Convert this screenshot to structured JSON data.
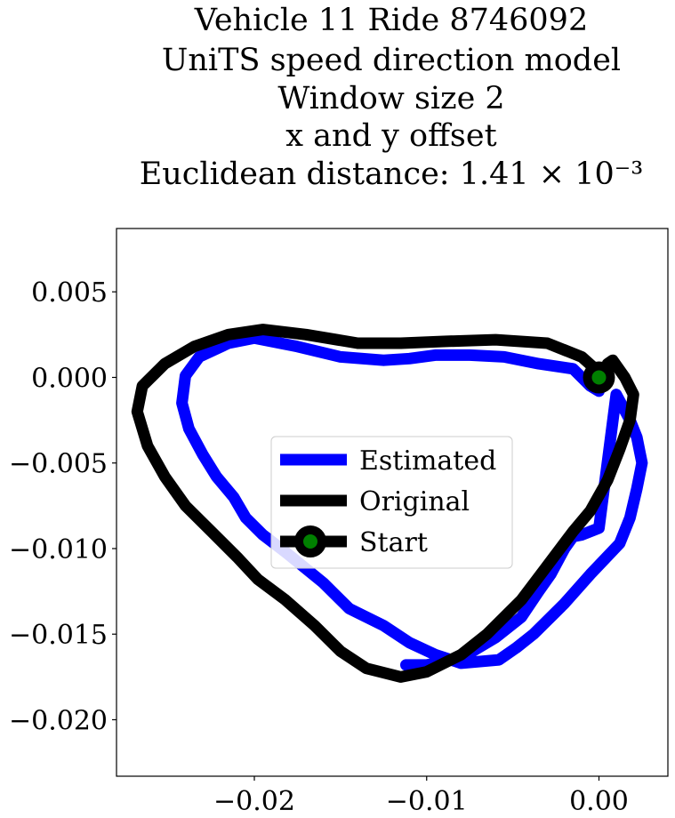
{
  "chart_data": {
    "type": "line",
    "title_lines": [
      "Vehicle 11 Ride 8746092",
      "UniTS speed direction model",
      "Window size 2",
      "x and y offset",
      "Euclidean distance: 1.41 × 10⁻³"
    ],
    "xlabel": "",
    "ylabel": "",
    "xlim": [
      -0.028,
      0.004
    ],
    "ylim": [
      -0.0233,
      0.0087
    ],
    "xticks": [
      -0.02,
      -0.01,
      0.0
    ],
    "xtick_labels": [
      "−0.02",
      "−0.01",
      "0.00"
    ],
    "yticks": [
      0.005,
      0.0,
      -0.005,
      -0.01,
      -0.015,
      -0.02
    ],
    "ytick_labels": [
      "0.005",
      "0.000",
      "−0.005",
      "−0.010",
      "−0.015",
      "−0.020"
    ],
    "grid": false,
    "legend_position": "center",
    "series": [
      {
        "name": "Estimated",
        "color": "#0000ff",
        "x": [
          0.0,
          -0.0005,
          -0.0015,
          -0.0035,
          -0.0055,
          -0.0075,
          -0.0095,
          -0.011,
          -0.0125,
          -0.015,
          -0.0175,
          -0.02,
          -0.0215,
          -0.0232,
          -0.024,
          -0.0242,
          -0.0238,
          -0.023,
          -0.0222,
          -0.0212,
          -0.0205,
          -0.0195,
          -0.0182,
          -0.016,
          -0.0145,
          -0.0125,
          -0.011,
          -0.0095,
          -0.008,
          -0.0058,
          -0.0048,
          -0.0038,
          -0.002,
          -0.0005,
          0.0012,
          0.0018,
          0.0022,
          0.0025,
          0.0022,
          0.0018,
          0.001,
          0.0,
          -0.001,
          -0.0015,
          -0.002,
          -0.0028,
          -0.0035,
          -0.0045,
          -0.006,
          -0.008,
          -0.01,
          -0.0112
        ],
        "y": [
          -0.0008,
          -0.0005,
          0.0005,
          0.0008,
          0.0012,
          0.0013,
          0.0013,
          0.0011,
          0.001,
          0.0012,
          0.0018,
          0.0023,
          0.002,
          0.0012,
          0.0001,
          -0.0015,
          -0.003,
          -0.0045,
          -0.0058,
          -0.007,
          -0.0082,
          -0.0092,
          -0.0102,
          -0.012,
          -0.0135,
          -0.0145,
          -0.0155,
          -0.0162,
          -0.0167,
          -0.0165,
          -0.0158,
          -0.015,
          -0.0132,
          -0.0115,
          -0.0097,
          -0.0082,
          -0.0065,
          -0.005,
          -0.0035,
          -0.0025,
          -0.001,
          -0.0088,
          -0.0092,
          -0.0093,
          -0.01,
          -0.0115,
          -0.0125,
          -0.014,
          -0.0152,
          -0.0164,
          -0.0168,
          -0.0168
        ]
      },
      {
        "name": "Original",
        "color": "#000000",
        "x": [
          0.0,
          -0.001,
          -0.003,
          -0.006,
          -0.009,
          -0.0115,
          -0.014,
          -0.017,
          -0.0195,
          -0.0215,
          -0.0235,
          -0.0252,
          -0.0265,
          -0.0268,
          -0.0262,
          -0.0252,
          -0.024,
          -0.0225,
          -0.021,
          -0.0198,
          -0.0182,
          -0.0165,
          -0.015,
          -0.0135,
          -0.0115,
          -0.01,
          -0.008,
          -0.0065,
          -0.0045,
          -0.003,
          -0.0015,
          -0.0005,
          0.0005,
          0.0012,
          0.0018,
          0.002,
          0.0015,
          0.0008,
          0.0005
        ],
        "y": [
          0.0003,
          0.0012,
          0.002,
          0.0022,
          0.0021,
          0.002,
          0.002,
          0.0025,
          0.0028,
          0.0025,
          0.0018,
          0.0008,
          -0.0005,
          -0.002,
          -0.004,
          -0.0058,
          -0.0075,
          -0.009,
          -0.0105,
          -0.0118,
          -0.013,
          -0.0145,
          -0.016,
          -0.017,
          -0.0175,
          -0.0172,
          -0.0162,
          -0.015,
          -0.013,
          -0.011,
          -0.009,
          -0.0078,
          -0.006,
          -0.0042,
          -0.0025,
          -0.001,
          0.0,
          0.001,
          0.0008
        ]
      }
    ],
    "start": {
      "name": "Start",
      "x": 0.0,
      "y": 0.0,
      "color": "#008000",
      "line_color": "#000000"
    },
    "legend_entries": [
      "Estimated",
      "Original",
      "Start"
    ]
  }
}
